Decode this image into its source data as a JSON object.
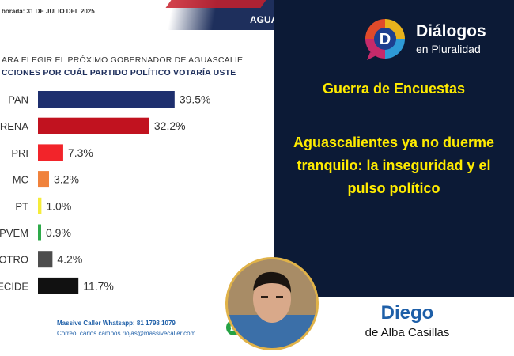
{
  "chart_header": {
    "date_text": "borada: 31 DE JULIO DEL 2025",
    "right_tag": "AGUA",
    "question_line1": "ARA ELEGIR EL PRÓXIMO GOBERNADOR DE AGUASCALIE",
    "question_line2": "CCIONES POR CUÁL PARTIDO POLÍTICO VOTARÍA USTE"
  },
  "chart_data": {
    "type": "bar",
    "orientation": "horizontal",
    "categories": [
      "PAN",
      "ORENA",
      "PRI",
      "MC",
      "PT",
      "PVEM",
      "OTRO",
      "ECIDE"
    ],
    "values": [
      39.5,
      32.2,
      7.3,
      3.2,
      1.0,
      0.9,
      4.2,
      11.7
    ],
    "value_labels": [
      "39.5%",
      "32.2%",
      "7.3%",
      "3.2%",
      "1.0%",
      "0.9%",
      "4.2%",
      "11.7%"
    ],
    "colors": [
      "#1e2f6e",
      "#c1121f",
      "#f2242a",
      "#f0823c",
      "#f5ec3a",
      "#2eaa4a",
      "#4d4d4d",
      "#111111"
    ],
    "xlim": [
      0,
      40
    ]
  },
  "chart_footer": {
    "line1": "Massive Caller Whatsapp: 81 1798 1079",
    "line2": "Correo: carlos.campos.riojas@massivecaller.com"
  },
  "brand": {
    "name": "Diálogos",
    "sub": "en Pluralidad",
    "logo_letter": "D"
  },
  "article": {
    "section": "Guerra de Encuestas",
    "headline": "Aguascalientes ya no duerme tranquilo: la inseguridad y el pulso político"
  },
  "author": {
    "first": "Diego",
    "last": "de Alba Casillas"
  },
  "icons": {
    "whatsapp": "whatsapp-icon",
    "logo": "dialogos-logo-icon"
  }
}
